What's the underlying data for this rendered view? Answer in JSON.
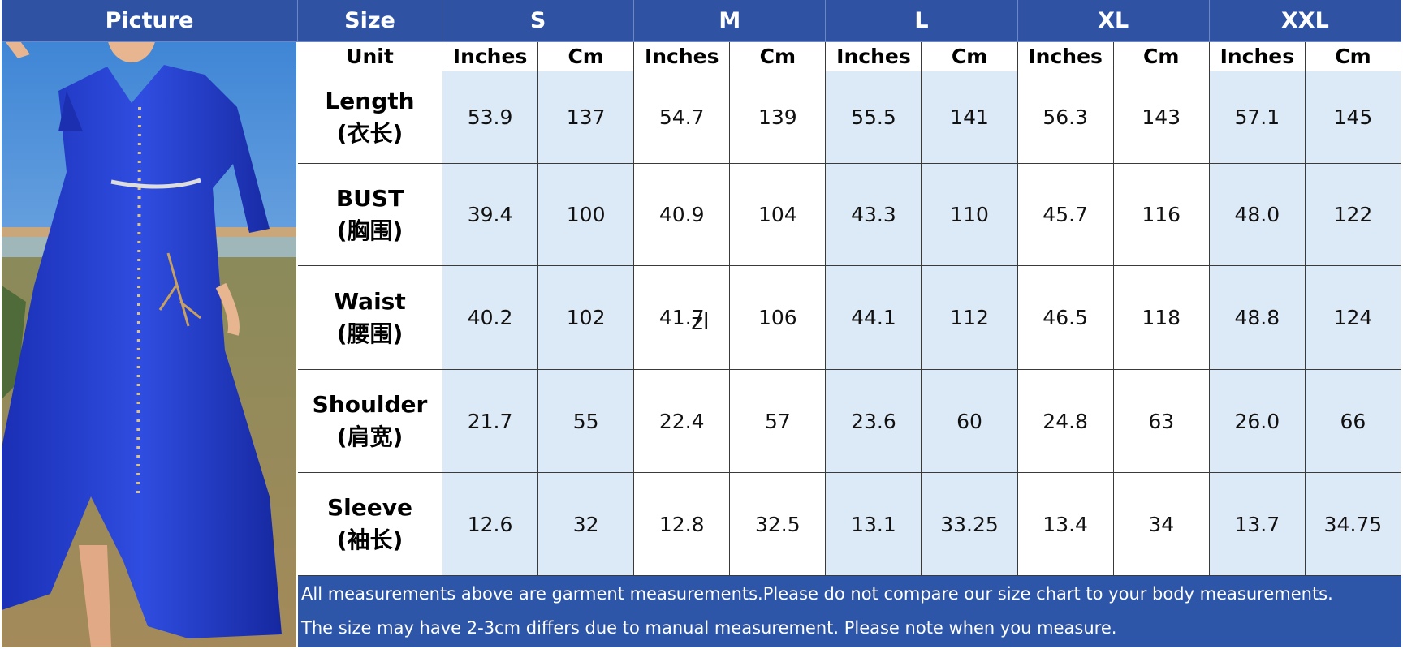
{
  "table": {
    "header": [
      "Picture",
      "Size",
      "S",
      "M",
      "L",
      "XL",
      "XXL"
    ],
    "unit_label": "Unit",
    "units": [
      "Inches",
      "Cm",
      "Inches",
      "Cm",
      "Inches",
      "Cm",
      "Inches",
      "Cm",
      "Inches",
      "Cm"
    ],
    "rows": [
      {
        "label": "Length",
        "label_cn": "(衣长)",
        "values": [
          "53.9",
          "137",
          "54.7",
          "139",
          "55.5",
          "141",
          "56.3",
          "143",
          "57.1",
          "145"
        ]
      },
      {
        "label": "BUST",
        "label_cn": "(胸围)",
        "values": [
          "39.4",
          "100",
          "40.9",
          "104",
          "43.3",
          "110",
          "45.7",
          "116",
          "48.0",
          "122"
        ]
      },
      {
        "label": "Waist",
        "label_cn": "(腰围)",
        "values": [
          "40.2",
          "102",
          "41.7",
          "106",
          "44.1",
          "112",
          "46.5",
          "118",
          "48.8",
          "124"
        ]
      },
      {
        "label": "Shoulder",
        "label_cn": "(肩宽)",
        "values": [
          "21.7",
          "55",
          "22.4",
          "57",
          "23.6",
          "60",
          "24.8",
          "63",
          "26.0",
          "66"
        ]
      },
      {
        "label": "Sleeve",
        "label_cn": "(袖长)",
        "values": [
          "12.6",
          "32",
          "12.8",
          "32.5",
          "13.1",
          "33.25",
          "13.4",
          "34",
          "13.7",
          "34.75"
        ]
      }
    ],
    "overlay_text": "zl"
  },
  "footer": [
    "All measurements above are garment measurements.Please do not compare our size chart to your body measurements.",
    "The size may have 2-3cm differs due to manual measurement. Please note when you measure."
  ]
}
